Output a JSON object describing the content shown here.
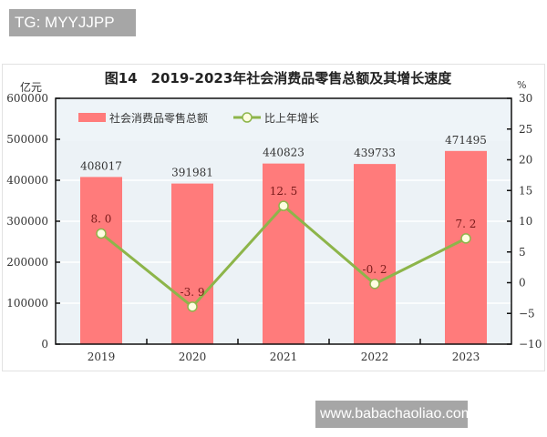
{
  "watermarks": {
    "top": "TG: MYYJJPP",
    "bottom": "www.babachaoliao.com"
  },
  "chart": {
    "title": "图14　2019-2023年社会消费品零售总额及其增长速度",
    "left_unit": "亿元",
    "right_unit": "%",
    "legend": {
      "bar": "社会消费品零售总额",
      "line": "比上年增长"
    },
    "colors": {
      "bar": "#ff7b7b",
      "line": "#8db54a",
      "marker_fill": "#fffde0",
      "plot_bg": "#ecf2f6",
      "grid": "#ffffff"
    }
  },
  "chart_data": {
    "type": "bar+line",
    "title": "图14　2019-2023年社会消费品零售总额及其增长速度",
    "categories": [
      "2019",
      "2020",
      "2021",
      "2022",
      "2023"
    ],
    "series": [
      {
        "name": "社会消费品零售总额",
        "type": "bar",
        "axis": "left",
        "unit": "亿元",
        "values": [
          408017,
          391981,
          440823,
          439733,
          471495
        ],
        "labels": [
          "408017",
          "391981",
          "440823",
          "439733",
          "471495"
        ]
      },
      {
        "name": "比上年增长",
        "type": "line",
        "axis": "right",
        "unit": "%",
        "values": [
          8.0,
          -3.9,
          12.5,
          -0.2,
          7.2
        ],
        "labels": [
          "8.0",
          "-3.9",
          "12.5",
          "-0.2",
          "7.2"
        ]
      }
    ],
    "ylabel_left": "亿元",
    "ylabel_right": "%",
    "ylim_left": [
      0,
      600000
    ],
    "ylim_right": [
      -10,
      30
    ],
    "yticks_left": [
      "0",
      "100000",
      "200000",
      "300000",
      "400000",
      "500000",
      "600000"
    ],
    "yticks_right": [
      "-10",
      "-5",
      "0",
      "5",
      "10",
      "15",
      "20",
      "25",
      "30"
    ],
    "grid": true,
    "legend_position": "top-left inside"
  }
}
